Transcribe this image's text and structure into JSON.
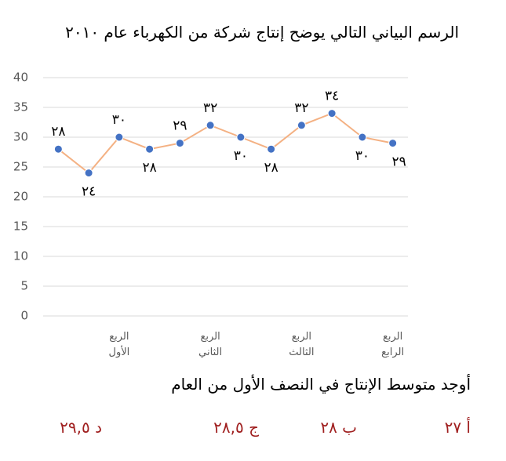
{
  "title": "الرسم البياني التالي يوضح إنتاج شركة من الكهرباء عام ٢٠١٠",
  "chart_data": {
    "type": "line",
    "categories": [
      null,
      null,
      "الربع الأول",
      null,
      null,
      "الربع الثاني",
      null,
      null,
      "الربع الثالث",
      null,
      null,
      "الربع الرابع"
    ],
    "values": [
      28,
      24,
      30,
      28,
      29,
      32,
      30,
      28,
      32,
      34,
      30,
      29
    ],
    "value_labels": [
      "٢٨",
      "٢٤",
      "٣٠",
      "٢٨",
      "٢٩",
      "٣٢",
      "٣٠",
      "٢٨",
      "٣٢",
      "٣٤",
      "٣٠",
      "٢٩"
    ],
    "color": "#f4b183",
    "marker_color": "#4472c4",
    "ylim": [
      0,
      40
    ],
    "yticks": [
      0,
      5,
      10,
      15,
      20,
      25,
      30,
      35,
      40
    ],
    "grid": true
  },
  "question": "أوجد متوسط الإنتاج في النصف الأول من العام",
  "options": [
    "أ ٢٧",
    "ب ٢٨",
    "ج ٢٨,٥",
    "د ٢٩,٥"
  ]
}
